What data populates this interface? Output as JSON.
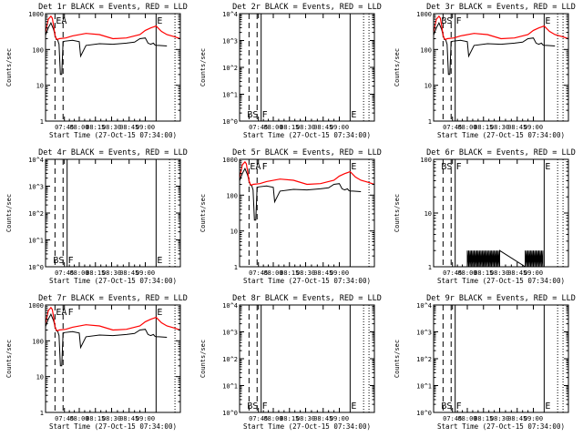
{
  "figure": {
    "xlabel": "Start Time (27-Oct-15 07:34:00)",
    "ylabel": "Counts/sec",
    "x_ticks": [
      "07:45",
      "08:00",
      "08:15",
      "08:30",
      "08:45",
      "09:00"
    ]
  },
  "chart_data": [
    {
      "type": "line",
      "title": "Det 1r BLACK = Events, RED = LLD",
      "yscale": "log",
      "ylim": [
        1,
        1000
      ],
      "y_ticks": [
        "1",
        "10",
        "100",
        "1000"
      ],
      "markers": [
        {
          "label": "EA",
          "x": 7.0
        },
        {
          "label": "E",
          "x": 82.0
        }
      ],
      "vlines": [
        {
          "x": 7,
          "style": "dashed"
        },
        {
          "x": 13,
          "style": "dashed"
        },
        {
          "x": 82,
          "style": "solid"
        },
        {
          "x": 96,
          "style": "dotted"
        }
      ],
      "x_range": [
        0,
        100
      ],
      "series": [
        {
          "name": "BLACK = Events",
          "color": "#000000",
          "x": [
            0,
            2,
            4,
            6,
            7,
            8,
            9,
            10,
            11,
            12,
            13,
            14,
            20,
            25,
            26,
            30,
            40,
            50,
            60,
            66,
            70,
            74,
            76,
            78,
            80,
            81,
            82,
            84,
            90
          ],
          "y": [
            250,
            400,
            550,
            360,
            250,
            190,
            185,
            140,
            20,
            20,
            160,
            170,
            180,
            165,
            65,
            130,
            145,
            140,
            150,
            160,
            200,
            210,
            150,
            140,
            150,
            135,
            130,
            130,
            125
          ]
        },
        {
          "name": "RED = LLD",
          "color": "#ff0000",
          "x": [
            0,
            2,
            4,
            5,
            6,
            7,
            8,
            9,
            10,
            15,
            20,
            30,
            40,
            50,
            60,
            66,
            70,
            74,
            78,
            82,
            86,
            90,
            95,
            100
          ],
          "y": [
            300,
            700,
            850,
            750,
            450,
            250,
            200,
            190,
            200,
            210,
            240,
            280,
            260,
            200,
            210,
            240,
            260,
            340,
            400,
            450,
            320,
            260,
            230,
            200
          ]
        }
      ]
    },
    {
      "type": "line",
      "title": "Det 2r BLACK = Events, RED = LLD",
      "yscale": "log",
      "ylim": [
        1,
        10000
      ],
      "y_ticks": [
        "10^0",
        "10^1",
        "10^2",
        "10^3",
        "10^4"
      ],
      "markers": [
        {
          "label": "BS",
          "x": 5.0
        },
        {
          "label": "F",
          "x": 16.0
        },
        {
          "label": "E",
          "x": 82.0
        }
      ],
      "vlines": [
        {
          "x": 7,
          "style": "dashed"
        },
        {
          "x": 13,
          "style": "dashed"
        },
        {
          "x": 16,
          "style": "solid"
        },
        {
          "x": 82,
          "style": "solid"
        },
        {
          "x": 92,
          "style": "dotted"
        },
        {
          "x": 96,
          "style": "dotted"
        }
      ],
      "x_range": [
        0,
        100
      ],
      "series": []
    },
    {
      "type": "line",
      "title": "Det 3r BLACK = Events, RED = LLD",
      "yscale": "log",
      "ylim": [
        1,
        1000
      ],
      "y_ticks": [
        "1",
        "10",
        "100",
        "1000"
      ],
      "markers": [
        {
          "label": "BS",
          "x": 5.0
        },
        {
          "label": "F",
          "x": 16.0
        },
        {
          "label": "E",
          "x": 82.0
        }
      ],
      "vlines": [
        {
          "x": 7,
          "style": "dashed"
        },
        {
          "x": 13,
          "style": "dashed"
        },
        {
          "x": 16,
          "style": "solid"
        },
        {
          "x": 82,
          "style": "solid"
        },
        {
          "x": 92,
          "style": "dotted"
        },
        {
          "x": 96,
          "style": "dotted"
        }
      ],
      "x_range": [
        0,
        100
      ],
      "series": [
        {
          "name": "BLACK = Events",
          "color": "#000000",
          "x": [
            0,
            2,
            4,
            6,
            7,
            8,
            9,
            10,
            11,
            12,
            13,
            14,
            20,
            25,
            26,
            30,
            40,
            50,
            60,
            66,
            70,
            74,
            76,
            78,
            80,
            81,
            82,
            84,
            90
          ],
          "y": [
            250,
            400,
            550,
            360,
            250,
            190,
            185,
            140,
            20,
            20,
            160,
            170,
            180,
            165,
            65,
            130,
            145,
            140,
            150,
            160,
            200,
            210,
            150,
            140,
            150,
            135,
            130,
            130,
            125
          ]
        },
        {
          "name": "RED = LLD",
          "color": "#ff0000",
          "x": [
            0,
            2,
            4,
            5,
            6,
            7,
            8,
            9,
            10,
            15,
            20,
            30,
            40,
            50,
            60,
            66,
            70,
            74,
            78,
            82,
            86,
            90,
            95,
            100
          ],
          "y": [
            300,
            700,
            850,
            750,
            450,
            250,
            200,
            190,
            200,
            210,
            240,
            280,
            260,
            200,
            210,
            240,
            260,
            340,
            400,
            450,
            320,
            260,
            230,
            200
          ]
        }
      ]
    },
    {
      "type": "line",
      "title": "Det 4r BLACK = Events, RED = LLD",
      "yscale": "log",
      "ylim": [
        1,
        10000
      ],
      "y_ticks": [
        "10^0",
        "10^1",
        "10^2",
        "10^3",
        "10^4"
      ],
      "markers": [
        {
          "label": "BS",
          "x": 5.0
        },
        {
          "label": "F",
          "x": 16.0
        },
        {
          "label": "E",
          "x": 82.0
        }
      ],
      "vlines": [
        {
          "x": 7,
          "style": "dashed"
        },
        {
          "x": 13,
          "style": "dashed"
        },
        {
          "x": 16,
          "style": "solid"
        },
        {
          "x": 82,
          "style": "solid"
        },
        {
          "x": 92,
          "style": "dotted"
        },
        {
          "x": 96,
          "style": "dotted"
        }
      ],
      "x_range": [
        0,
        100
      ],
      "series": []
    },
    {
      "type": "line",
      "title": "Det 5r BLACK = Events, RED = LLD",
      "yscale": "log",
      "ylim": [
        1,
        1000
      ],
      "y_ticks": [
        "1",
        "10",
        "100",
        "1000"
      ],
      "markers": [
        {
          "label": "EA",
          "x": 7.0
        },
        {
          "label": "F",
          "x": 16.0
        },
        {
          "label": "E",
          "x": 82.0
        }
      ],
      "vlines": [
        {
          "x": 7,
          "style": "dashed"
        },
        {
          "x": 13,
          "style": "dashed"
        },
        {
          "x": 82,
          "style": "solid"
        },
        {
          "x": 96,
          "style": "dotted"
        }
      ],
      "x_range": [
        0,
        100
      ],
      "series": [
        {
          "name": "BLACK = Events",
          "color": "#000000",
          "x": [
            0,
            2,
            4,
            6,
            7,
            8,
            9,
            10,
            11,
            12,
            13,
            14,
            20,
            25,
            26,
            30,
            40,
            50,
            60,
            66,
            70,
            74,
            76,
            78,
            80,
            81,
            82,
            84,
            90
          ],
          "y": [
            250,
            400,
            550,
            360,
            250,
            190,
            185,
            140,
            20,
            20,
            160,
            170,
            180,
            165,
            65,
            130,
            145,
            140,
            150,
            160,
            200,
            210,
            150,
            140,
            150,
            135,
            130,
            130,
            125
          ]
        },
        {
          "name": "RED = LLD",
          "color": "#ff0000",
          "x": [
            0,
            2,
            4,
            5,
            6,
            7,
            8,
            9,
            10,
            15,
            20,
            30,
            40,
            50,
            60,
            66,
            70,
            74,
            78,
            82,
            86,
            90,
            95,
            100
          ],
          "y": [
            300,
            700,
            850,
            750,
            450,
            250,
            200,
            190,
            200,
            210,
            240,
            280,
            260,
            200,
            210,
            240,
            260,
            340,
            400,
            450,
            320,
            260,
            230,
            200
          ]
        }
      ]
    },
    {
      "type": "line",
      "title": "Det 6r BLACK = Events, RED = LLD",
      "yscale": "log",
      "ylim": [
        1,
        100
      ],
      "y_ticks": [
        "1",
        "10",
        "100"
      ],
      "markers": [
        {
          "label": "BS",
          "x": 5.0
        },
        {
          "label": "F",
          "x": 16.0
        },
        {
          "label": "E",
          "x": 82.0
        }
      ],
      "vlines": [
        {
          "x": 7,
          "style": "dashed"
        },
        {
          "x": 13,
          "style": "dashed"
        },
        {
          "x": 16,
          "style": "solid"
        },
        {
          "x": 82,
          "style": "solid"
        },
        {
          "x": 92,
          "style": "dotted"
        },
        {
          "x": 96,
          "style": "dotted"
        }
      ],
      "x_range": [
        0,
        100
      ],
      "series": [
        {
          "name": "BLACK = Events",
          "color": "#000000",
          "x": [
            25,
            25,
            26,
            26,
            27,
            27,
            28,
            28,
            29,
            29,
            30,
            30,
            31,
            31,
            32,
            32,
            33,
            33,
            34,
            34,
            35,
            35,
            36,
            36,
            37,
            37,
            38,
            38,
            39,
            39,
            40,
            40,
            41,
            41,
            42,
            42,
            43,
            43,
            44,
            44,
            45,
            45,
            46,
            46,
            47,
            47,
            48,
            48,
            49,
            49,
            68,
            68,
            69,
            69,
            70,
            70,
            71,
            71,
            72,
            72,
            73,
            73,
            74,
            74,
            75,
            75,
            76,
            76,
            77,
            77,
            78,
            78,
            79,
            79,
            80,
            80,
            81,
            81
          ],
          "y": [
            1,
            2,
            1,
            2,
            1,
            2,
            1,
            2,
            1,
            2,
            1,
            2,
            1,
            2,
            1,
            2,
            1,
            2,
            1,
            2,
            1,
            2,
            1,
            2,
            1,
            2,
            1,
            2,
            1,
            2,
            1,
            2,
            1,
            2,
            1,
            2,
            1,
            2,
            1,
            2,
            1,
            2,
            1,
            2,
            1,
            2,
            1,
            2,
            1,
            2,
            1,
            2,
            1,
            2,
            1,
            2,
            1,
            2,
            1,
            2,
            1,
            2,
            1,
            2,
            1,
            2,
            1,
            2,
            1,
            2,
            1,
            2,
            1,
            2,
            1,
            2,
            1,
            2
          ]
        }
      ]
    },
    {
      "type": "line",
      "title": "Det 7r BLACK = Events, RED = LLD",
      "yscale": "log",
      "ylim": [
        1,
        1000
      ],
      "y_ticks": [
        "1",
        "10",
        "100",
        "1000"
      ],
      "markers": [
        {
          "label": "EA",
          "x": 7.0
        },
        {
          "label": "F",
          "x": 16.0
        },
        {
          "label": "E",
          "x": 82.0
        }
      ],
      "vlines": [
        {
          "x": 7,
          "style": "dashed"
        },
        {
          "x": 13,
          "style": "dashed"
        },
        {
          "x": 82,
          "style": "solid"
        },
        {
          "x": 96,
          "style": "dotted"
        }
      ],
      "x_range": [
        0,
        100
      ],
      "series": [
        {
          "name": "BLACK = Events",
          "color": "#000000",
          "x": [
            0,
            2,
            4,
            6,
            7,
            8,
            9,
            10,
            11,
            12,
            13,
            14,
            20,
            25,
            26,
            30,
            40,
            50,
            60,
            66,
            70,
            74,
            76,
            78,
            80,
            81,
            82,
            84,
            90
          ],
          "y": [
            250,
            400,
            550,
            360,
            250,
            190,
            185,
            140,
            20,
            20,
            160,
            170,
            180,
            165,
            65,
            130,
            145,
            140,
            150,
            160,
            200,
            210,
            150,
            140,
            150,
            135,
            130,
            130,
            125
          ]
        },
        {
          "name": "RED = LLD",
          "color": "#ff0000",
          "x": [
            0,
            2,
            4,
            5,
            6,
            7,
            8,
            9,
            10,
            15,
            20,
            30,
            40,
            50,
            60,
            66,
            70,
            74,
            78,
            82,
            86,
            90,
            95,
            100
          ],
          "y": [
            300,
            700,
            850,
            750,
            450,
            250,
            200,
            190,
            200,
            210,
            240,
            280,
            260,
            200,
            210,
            240,
            260,
            340,
            400,
            450,
            320,
            260,
            230,
            200
          ]
        }
      ]
    },
    {
      "type": "line",
      "title": "Det 8r BLACK = Events, RED = LLD",
      "yscale": "log",
      "ylim": [
        1,
        10000
      ],
      "y_ticks": [
        "10^0",
        "10^1",
        "10^2",
        "10^3",
        "10^4"
      ],
      "markers": [
        {
          "label": "BS",
          "x": 5.0
        },
        {
          "label": "F",
          "x": 16.0
        },
        {
          "label": "E",
          "x": 82.0
        }
      ],
      "vlines": [
        {
          "x": 7,
          "style": "dashed"
        },
        {
          "x": 13,
          "style": "dashed"
        },
        {
          "x": 16,
          "style": "solid"
        },
        {
          "x": 82,
          "style": "solid"
        },
        {
          "x": 92,
          "style": "dotted"
        },
        {
          "x": 96,
          "style": "dotted"
        }
      ],
      "x_range": [
        0,
        100
      ],
      "series": []
    },
    {
      "type": "line",
      "title": "Det 9r BLACK = Events, RED = LLD",
      "yscale": "log",
      "ylim": [
        1,
        10000
      ],
      "y_ticks": [
        "10^0",
        "10^1",
        "10^2",
        "10^3",
        "10^4"
      ],
      "markers": [
        {
          "label": "BS",
          "x": 5.0
        },
        {
          "label": "F",
          "x": 16.0
        },
        {
          "label": "E",
          "x": 82.0
        }
      ],
      "vlines": [
        {
          "x": 7,
          "style": "dashed"
        },
        {
          "x": 13,
          "style": "dashed"
        },
        {
          "x": 16,
          "style": "solid"
        },
        {
          "x": 82,
          "style": "solid"
        },
        {
          "x": 92,
          "style": "dotted"
        },
        {
          "x": 96,
          "style": "dotted"
        }
      ],
      "x_range": [
        0,
        100
      ],
      "series": []
    }
  ]
}
